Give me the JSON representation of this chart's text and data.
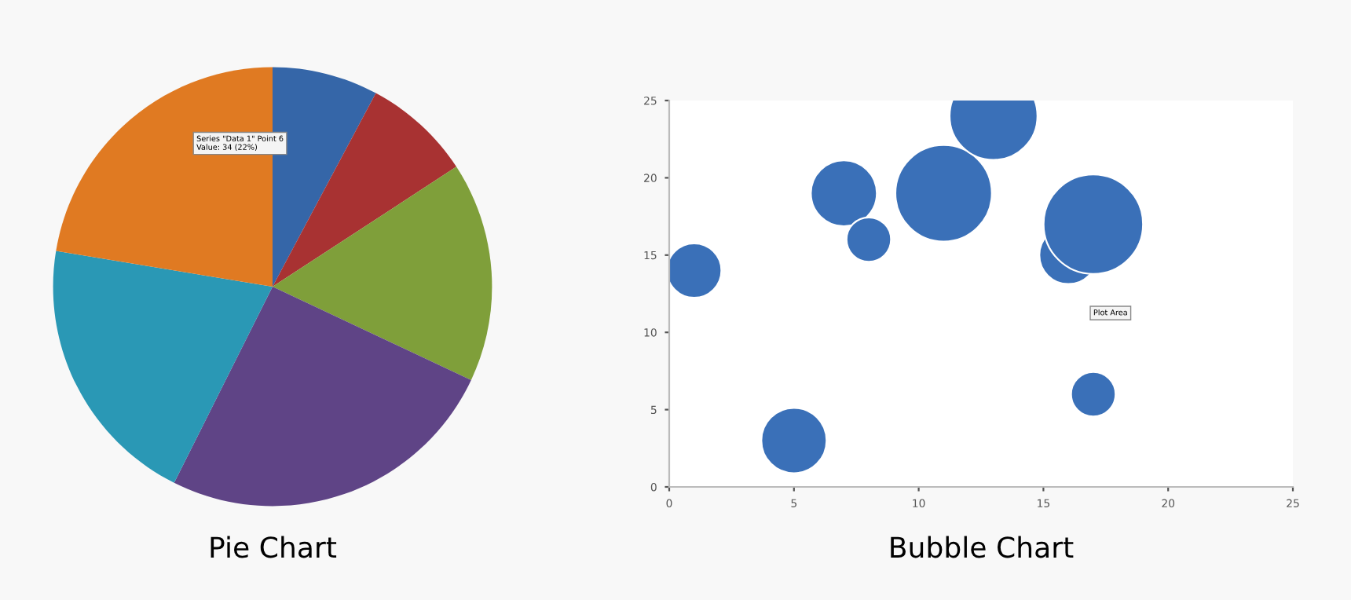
{
  "chart_data": [
    {
      "type": "pie",
      "title": "Pie Chart",
      "categories": [
        null,
        null,
        null,
        null,
        null,
        null
      ],
      "values": [
        7.8,
        8.0,
        16.2,
        25.4,
        20.2,
        22.4
      ],
      "colors": [
        "#3566a8",
        "#a83232",
        "#7f9f3a",
        "#5f4486",
        "#2a98b5",
        "#e07a22"
      ],
      "annotations": [
        "Series \"Data 1\" Point 6\nValue: 34 (22%)"
      ]
    },
    {
      "type": "bubble",
      "title": "Bubble Chart",
      "x": [
        1,
        5,
        7,
        8,
        11,
        13,
        16,
        17,
        17
      ],
      "values": [
        14,
        3,
        19,
        16,
        19,
        24,
        15,
        17,
        6
      ],
      "sizes": [
        0.3,
        0.43,
        0.44,
        0.2,
        0.94,
        0.78,
        0.34,
        1,
        0.2
      ],
      "color": "#3a70b8",
      "xlim": [
        0,
        25
      ],
      "ylim": [
        0,
        25
      ],
      "xticks": [
        0,
        5,
        10,
        15,
        20,
        25
      ],
      "yticks": [
        0,
        5,
        10,
        15,
        20,
        25
      ],
      "grid": false,
      "annotations": [
        "Plot Area"
      ]
    }
  ]
}
